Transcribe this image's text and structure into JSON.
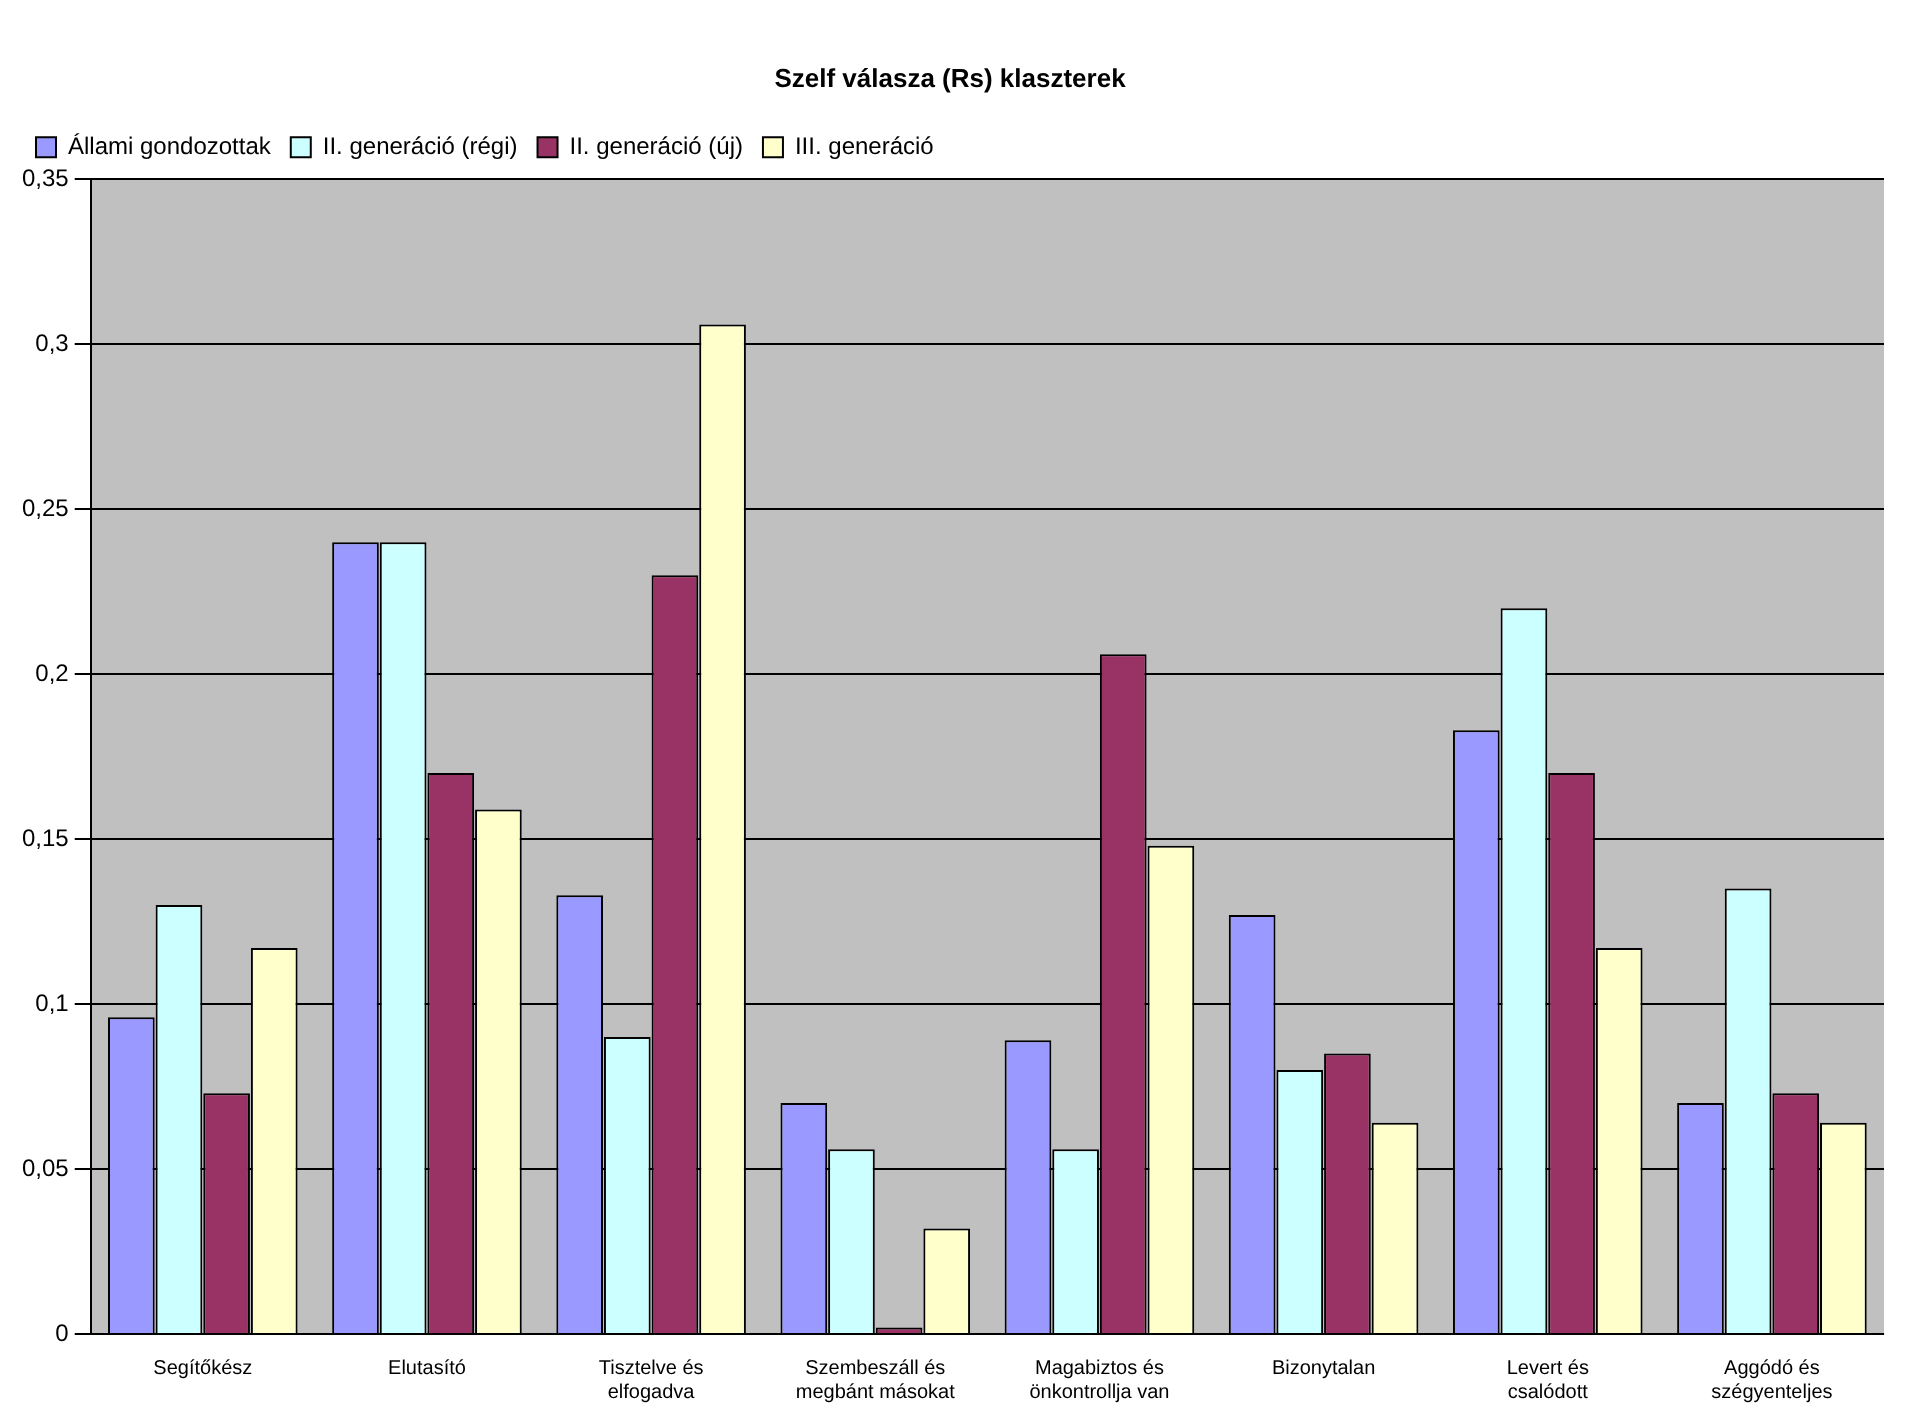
{
  "chart_data": {
    "type": "bar",
    "title": "Szelf válasza (Rs) klaszterek",
    "categories": [
      "Segítőkész",
      "Elutasító",
      "Tisztelve és elfogadva",
      "Szembeszáll és megbánt másokat",
      "Magabiztos és önkontrollja van",
      "Bizonytalan",
      "Levert és csalódott",
      "Aggódó és szégyenteljes"
    ],
    "series": [
      {
        "name": "Állami gondozottak",
        "color": "#9999ff",
        "values": [
          0.096,
          0.24,
          0.133,
          0.07,
          0.089,
          0.127,
          0.183,
          0.07
        ]
      },
      {
        "name": "II. generáció (régi)",
        "color": "#ccffff",
        "values": [
          0.13,
          0.24,
          0.09,
          0.056,
          0.056,
          0.08,
          0.22,
          0.135
        ]
      },
      {
        "name": "II. generáció (új)",
        "color": "#993366",
        "values": [
          0.073,
          0.17,
          0.23,
          0.002,
          0.206,
          0.085,
          0.17,
          0.073
        ]
      },
      {
        "name": "III. generáció",
        "color": "#ffffcc",
        "values": [
          0.117,
          0.159,
          0.306,
          0.032,
          0.148,
          0.064,
          0.117,
          0.064
        ]
      }
    ],
    "ylim": [
      0,
      0.35
    ],
    "yticks": [
      {
        "value": 0,
        "label": "0"
      },
      {
        "value": 0.05,
        "label": "0,05"
      },
      {
        "value": 0.1,
        "label": "0,1"
      },
      {
        "value": 0.15,
        "label": "0,15"
      },
      {
        "value": 0.2,
        "label": "0,2"
      },
      {
        "value": 0.25,
        "label": "0,25"
      },
      {
        "value": 0.3,
        "label": "0,3"
      },
      {
        "value": 0.35,
        "label": "0,35"
      }
    ],
    "grid": "y",
    "legend": "top left"
  }
}
